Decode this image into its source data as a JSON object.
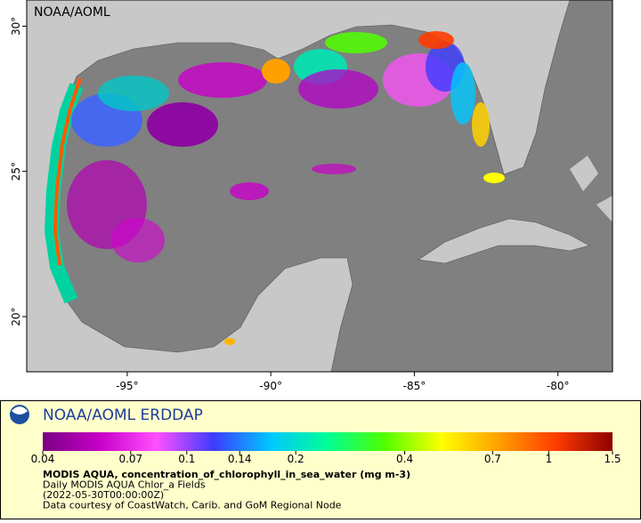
{
  "map": {
    "title": "NOAA/AOML",
    "xlim": [
      -98.5,
      -78.1
    ],
    "ylim": [
      18.1,
      30.9
    ],
    "xticks": [
      {
        "value": -95,
        "label": "-95°"
      },
      {
        "value": -90,
        "label": "-90°"
      },
      {
        "value": -85,
        "label": "-85°"
      },
      {
        "value": -80,
        "label": "-80°"
      }
    ],
    "yticks": [
      {
        "value": 20,
        "label": "20°"
      },
      {
        "value": 25,
        "label": "25°"
      },
      {
        "value": 30,
        "label": "30°"
      }
    ]
  },
  "legend": {
    "title": "NOAA/AOML ERDDAP",
    "colorbar": {
      "scale": "log",
      "lim": [
        0.04,
        1.5
      ],
      "ticks": [
        0.04,
        0.07,
        0.1,
        0.14,
        0.2,
        0.4,
        0.7,
        1,
        1.5
      ],
      "colors": [
        "#780082",
        "#c800c8",
        "#ff50ff",
        "#3c3cff",
        "#00c8ff",
        "#00ff96",
        "#50ff00",
        "#ffff00",
        "#ffa000",
        "#ff3c00",
        "#8c0000"
      ]
    },
    "caption": [
      "MODIS AQUA, concentration_of_chlorophyll_in_sea_water (mg m-3)",
      "Daily MODIS AQUA Chlor_a Fields",
      "(2022-05-30T00:00:00Z)",
      "Data courtesy of CoastWatch, Carib. and GoM Regional Node"
    ]
  }
}
